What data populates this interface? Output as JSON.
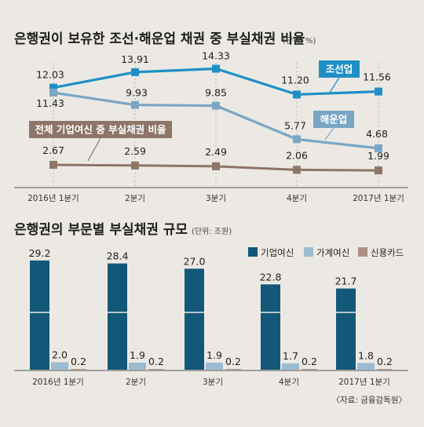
{
  "chart_data": [
    {
      "type": "line",
      "title": "은행권이 보유한 조선·해운업 채권 중 부실채권 비율",
      "unit": "(단위: %)",
      "categories": [
        "2016년 1분기",
        "2분기",
        "3분기",
        "4분기",
        "2017년 1분기"
      ],
      "ylim": [
        0,
        16
      ],
      "grid": false,
      "series": [
        {
          "name": "조선업",
          "color": "#1f8fc6",
          "values": [
            12.03,
            13.91,
            14.33,
            11.2,
            11.56
          ],
          "labels": [
            "12.03",
            "13.91",
            "14.33",
            "11.20",
            "11.56"
          ]
        },
        {
          "name": "해운업",
          "color": "#7aa6c4",
          "values": [
            11.43,
            9.93,
            9.85,
            5.77,
            4.68
          ],
          "labels": [
            "11.43",
            "9.93",
            "9.85",
            "5.77",
            "4.68"
          ]
        },
        {
          "name": "전체 기업여신 중 부실채권 비율",
          "color": "#8d7567",
          "values": [
            2.67,
            2.59,
            2.49,
            2.06,
            1.99
          ],
          "labels": [
            "2.67",
            "2.59",
            "2.49",
            "2.06",
            "1.99"
          ]
        }
      ]
    },
    {
      "type": "bar",
      "title": "은행권의 부문별 부실채권 규모",
      "unit": "(단위: 조원)",
      "categories": [
        "2016년 1분기",
        "2분기",
        "3분기",
        "4분기",
        "2017년 1분기"
      ],
      "ylim": [
        0,
        30
      ],
      "legend": "top-right",
      "series": [
        {
          "name": "기업여신",
          "color": "#135878",
          "values": [
            29.2,
            28.4,
            27.0,
            22.8,
            21.7
          ],
          "labels": [
            "29.2",
            "28.4",
            "27.0",
            "22.8",
            "21.7"
          ]
        },
        {
          "name": "가계여신",
          "color": "#9bbbd0",
          "values": [
            2.0,
            1.9,
            1.9,
            1.7,
            1.8
          ],
          "labels": [
            "2.0",
            "1.9",
            "1.9",
            "1.7",
            "1.8"
          ]
        },
        {
          "name": "신용카드",
          "color": "#ad9283",
          "values": [
            0.2,
            0.2,
            0.2,
            0.2,
            0.2
          ],
          "labels": [
            "0.2",
            "0.2",
            "0.2",
            "0.2",
            "0.2"
          ]
        }
      ]
    }
  ],
  "source": "〈자료: 금융감독원〉"
}
